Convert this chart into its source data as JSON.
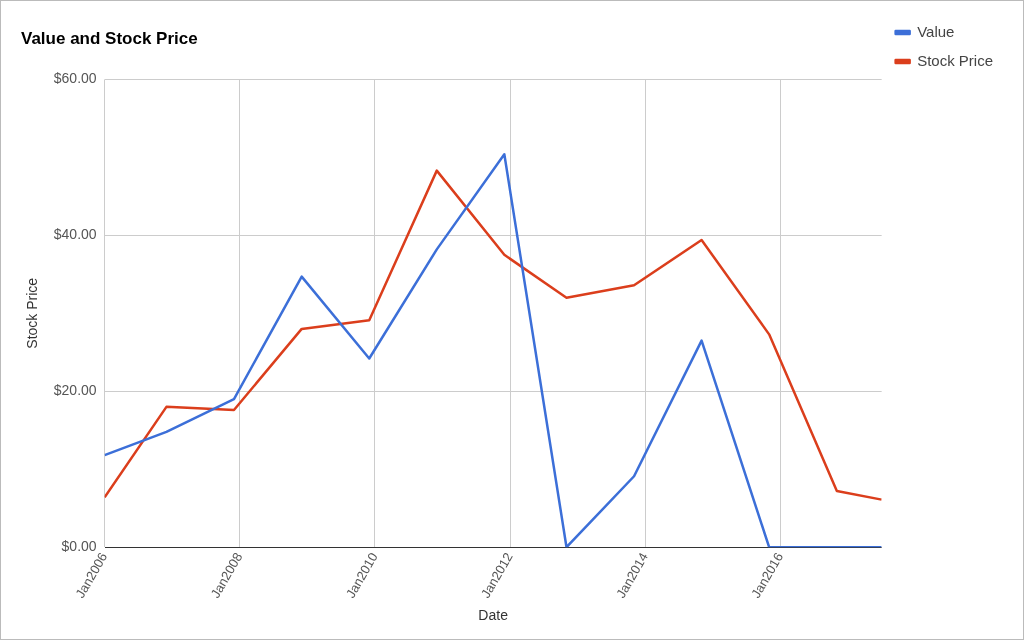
{
  "chart_data": {
    "type": "line",
    "title": "Value and Stock Price",
    "xlabel": "Date",
    "ylabel": "Stock Price",
    "x": [
      "2006-01",
      "2006-12",
      "2007-12",
      "2008-12",
      "2009-12",
      "2010-12",
      "2011-12",
      "2012-11",
      "2013-11",
      "2014-11",
      "2015-11",
      "2016-11",
      "2017-07"
    ],
    "series": [
      {
        "name": "Value",
        "color": "#3c6fd8",
        "values": [
          11.8,
          14.8,
          19,
          34.7,
          24.2,
          38.2,
          50.4,
          0,
          9.1,
          26.5,
          0,
          0,
          0
        ]
      },
      {
        "name": "Stock Price",
        "color": "#db3e1c",
        "values": [
          6.4,
          18,
          17.6,
          28,
          29.1,
          48.3,
          37.5,
          32,
          33.6,
          39.4,
          27.3,
          7.2,
          6.1
        ]
      }
    ],
    "xlim": [
      "2006-01",
      "2017-07"
    ],
    "xticks": [
      {
        "value": "2006-01",
        "label": "Jan2006"
      },
      {
        "value": "2008-01",
        "label": "Jan2008"
      },
      {
        "value": "2010-01",
        "label": "Jan2010"
      },
      {
        "value": "2012-01",
        "label": "Jan2012"
      },
      {
        "value": "2014-01",
        "label": "Jan2014"
      },
      {
        "value": "2016-01",
        "label": "Jan2016"
      }
    ],
    "ylim": [
      0,
      60
    ],
    "yticks": [
      {
        "value": 0,
        "label": "$0.00"
      },
      {
        "value": 20,
        "label": "$20.00"
      },
      {
        "value": 40,
        "label": "$40.00"
      },
      {
        "value": 60,
        "label": "$60.00"
      }
    ],
    "grid": true,
    "legend": "top right",
    "marker": "none",
    "line_style": "solid"
  }
}
